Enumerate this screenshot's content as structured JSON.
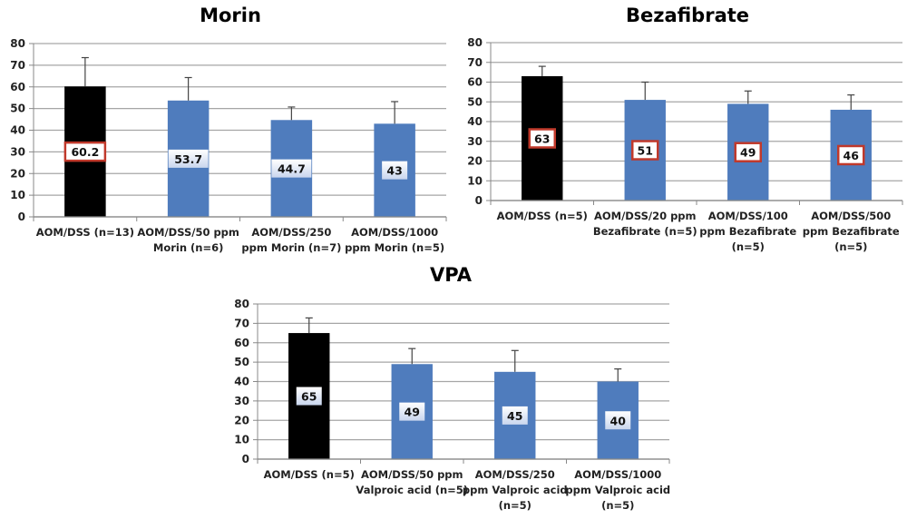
{
  "chart_data": [
    {
      "type": "bar",
      "title": "Morin",
      "xlabel": "",
      "ylabel": "",
      "ylim": [
        0,
        80
      ],
      "yticks": [
        0,
        10,
        20,
        30,
        40,
        50,
        60,
        70,
        80
      ],
      "grid": true,
      "categories": [
        [
          "AOM/DSS (n=13)"
        ],
        [
          "AOM/DSS/50 ppm",
          "Morin (n=6)"
        ],
        [
          "AOM/DSS/250",
          "ppm Morin (n=7)"
        ],
        [
          "AOM/DSS/1000",
          "ppm Morin (n=5)"
        ]
      ],
      "values": [
        60.2,
        53.7,
        44.7,
        43
      ],
      "error_upper": [
        73.5,
        64.3,
        50.7,
        53.2
      ],
      "data_labels": [
        "60.2",
        "53.7",
        "44.7",
        "43"
      ],
      "bar_colors": [
        "#000000",
        "#4f7cbd",
        "#4f7cbd",
        "#4f7cbd"
      ],
      "label_style": [
        "boxed-red",
        "light",
        "light",
        "light"
      ]
    },
    {
      "type": "bar",
      "title": "Bezafibrate",
      "xlabel": "",
      "ylabel": "",
      "ylim": [
        0,
        80
      ],
      "yticks": [
        0,
        10,
        20,
        30,
        40,
        50,
        60,
        70,
        80
      ],
      "grid": true,
      "categories": [
        [
          "AOM/DSS (n=5)"
        ],
        [
          "AOM/DSS/20 ppm",
          "Bezafibrate (n=5)"
        ],
        [
          "AOM/DSS/100",
          "ppm Bezafibrate",
          "(n=5)"
        ],
        [
          "AOM/DSS/500",
          "ppm Bezafibrate",
          "(n=5)"
        ]
      ],
      "values": [
        63,
        51,
        49,
        46
      ],
      "error_upper": [
        68,
        60,
        55.5,
        53.5
      ],
      "data_labels": [
        "63",
        "51",
        "49",
        "46"
      ],
      "bar_colors": [
        "#000000",
        "#4f7cbd",
        "#4f7cbd",
        "#4f7cbd"
      ],
      "label_style": [
        "boxed-red",
        "boxed-red",
        "boxed-red",
        "boxed-red"
      ]
    },
    {
      "type": "bar",
      "title": "VPA",
      "xlabel": "",
      "ylabel": "",
      "ylim": [
        0,
        80
      ],
      "yticks": [
        0,
        10,
        20,
        30,
        40,
        50,
        60,
        70,
        80
      ],
      "grid": true,
      "categories": [
        [
          "AOM/DSS (n=5)"
        ],
        [
          "AOM/DSS/50 ppm",
          "Valproic acid (n=5)"
        ],
        [
          "AOM/DSS/250",
          "ppm Valproic acid",
          "(n=5)"
        ],
        [
          "AOM/DSS/1000",
          "ppm Valproic acid",
          "(n=5)"
        ]
      ],
      "values": [
        65,
        49,
        45,
        40
      ],
      "error_upper": [
        72.8,
        57,
        56,
        46.5
      ],
      "data_labels": [
        "65",
        "49",
        "45",
        "40"
      ],
      "bar_colors": [
        "#000000",
        "#4f7cbd",
        "#4f7cbd",
        "#4f7cbd"
      ],
      "label_style": [
        "light",
        "light",
        "light",
        "light"
      ]
    }
  ]
}
